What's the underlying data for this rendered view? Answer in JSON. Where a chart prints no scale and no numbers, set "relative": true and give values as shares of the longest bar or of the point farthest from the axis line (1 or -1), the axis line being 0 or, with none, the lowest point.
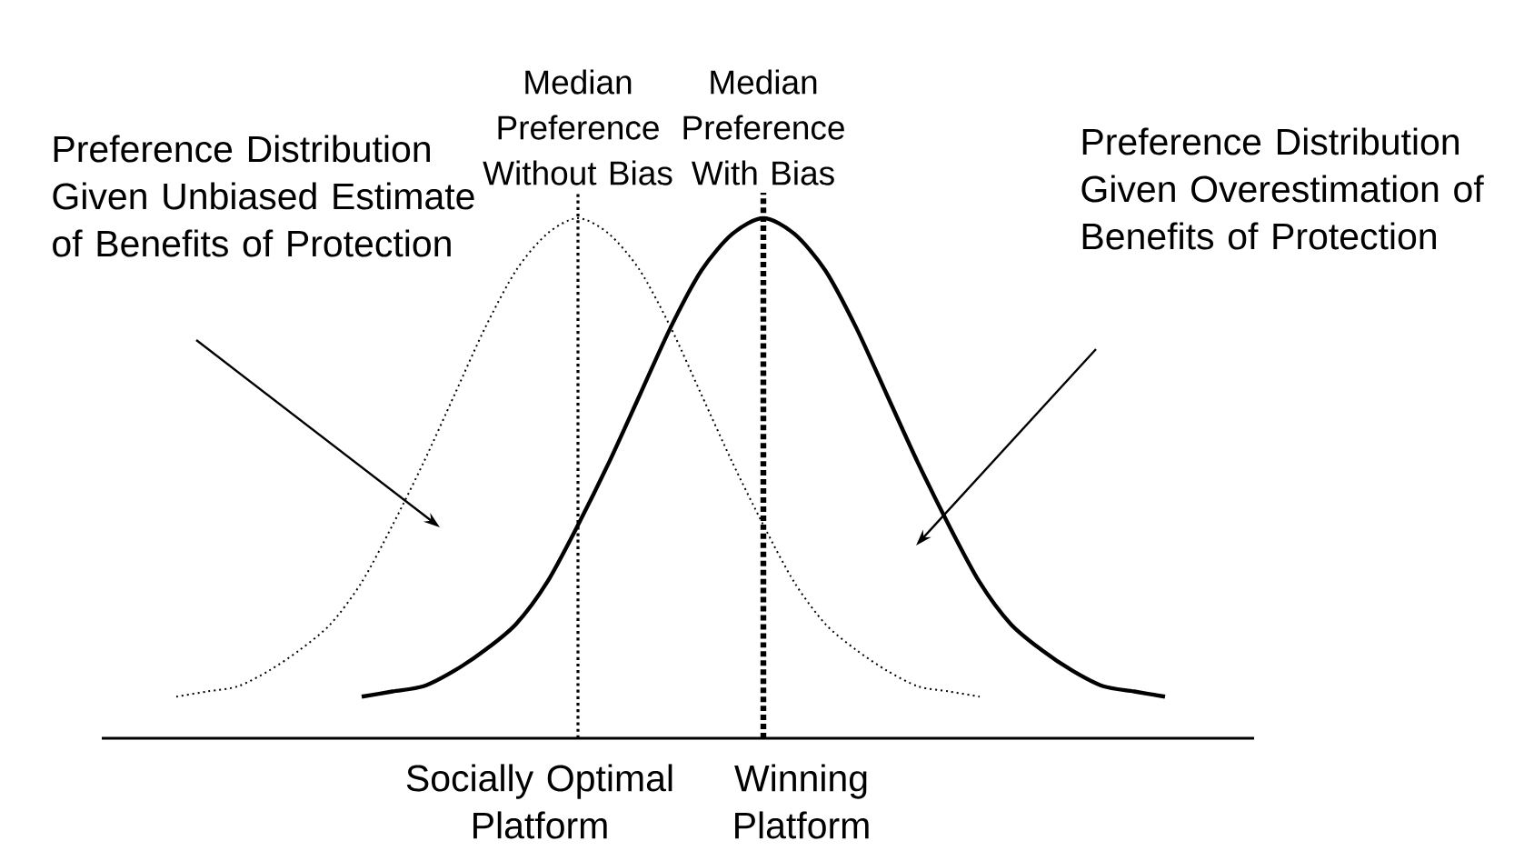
{
  "chart_data": {
    "type": "line",
    "relative": true,
    "categories": [
      null,
      null,
      null,
      null,
      null,
      null,
      null,
      null,
      null,
      null,
      null,
      null,
      null,
      null,
      null,
      null,
      null,
      null,
      null,
      null,
      null,
      null,
      null,
      null,
      null,
      null,
      null,
      null,
      null,
      null,
      null,
      null,
      null
    ],
    "series": [
      {
        "color": "#000000",
        "line_style": "dotted",
        "values": [
          0.08,
          0.09,
          0.1,
          0.13,
          0.17,
          0.22,
          0.3,
          0.41,
          0.53,
          0.66,
          0.79,
          0.9,
          0.97,
          1.0,
          0.97,
          0.9,
          0.79,
          0.66,
          0.53,
          0.41,
          0.3,
          0.22,
          0.17,
          0.13,
          0.1,
          0.09,
          0.08,
          null,
          null,
          null,
          null,
          null,
          null
        ]
      },
      {
        "color": "#000000",
        "line_style": "solid",
        "values": [
          null,
          null,
          null,
          null,
          null,
          null,
          0.08,
          0.09,
          0.1,
          0.13,
          0.17,
          0.22,
          0.3,
          0.41,
          0.53,
          0.66,
          0.79,
          0.9,
          0.97,
          1.0,
          0.97,
          0.9,
          0.79,
          0.66,
          0.53,
          0.41,
          0.3,
          0.22,
          0.17,
          0.13,
          0.1,
          0.09,
          0.08
        ]
      }
    ],
    "annotations": [
      "Preference Distribution Given Unbiased Estimate of Benefits of Protection",
      "Preference Distribution Given Overestimation of Benefits of Protection",
      "Median Preference Without Bias",
      "Median Preference With Bias",
      "Socially Optimal Platform",
      "Winning Platform"
    ]
  }
}
